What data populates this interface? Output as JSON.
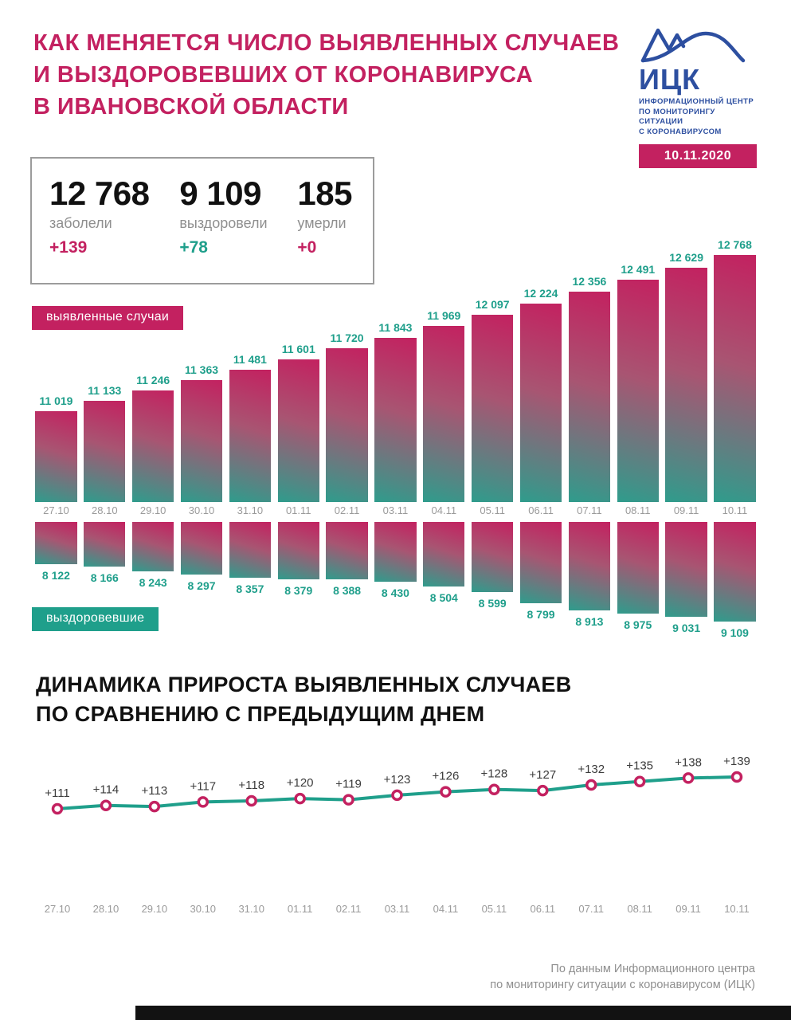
{
  "header": {
    "title_lines": [
      "КАК МЕНЯЕТСЯ ЧИСЛО ВЫЯВЛЕННЫХ СЛУЧАЕВ",
      "И ВЫЗДОРОВЕВШИХ ОТ КОРОНАВИРУСА",
      "В ИВАНОВСКОЙ ОБЛАСТИ"
    ],
    "logo": {
      "abbr": "ИЦК",
      "org_lines": [
        "ИНФОРМАЦИОННЫЙ ЦЕНТР",
        "ПО МОНИТОРИНГУ СИТУАЦИИ",
        "С КОРОНАВИРУСОМ"
      ],
      "icon": "wave-graph-icon"
    },
    "date_badge": "10.11.2020"
  },
  "summary": {
    "items": [
      {
        "value": "12 768",
        "label": "заболели",
        "delta": "+139",
        "accent": "#c32160"
      },
      {
        "value": "9 109",
        "label": "выздоровели",
        "delta": "+78",
        "accent": "#1f9f8b"
      },
      {
        "value": "185",
        "label": "умерли",
        "delta": "+0",
        "accent": "#c32160"
      }
    ]
  },
  "badges": {
    "cases": "выявленные случаи",
    "recovered": "выздоровевшие"
  },
  "section2_title_lines": [
    "ДИНАМИКА ПРИРОСТА ВЫЯВЛЕННЫХ СЛУЧАЕВ",
    "ПО СРАВНЕНИЮ С ПРЕДЫДУЩИМ ДНЕМ"
  ],
  "footer_lines": [
    "По данным Информационного центра",
    "по мониторингу ситуации с коронавирусом (ИЦК)"
  ],
  "colors": {
    "crimson": "#c32160",
    "teal": "#1f9f8b",
    "blue": "#2d4fa0"
  },
  "chart_data": [
    {
      "type": "bar",
      "name": "confirmed_cases",
      "title": "выявленные случаи",
      "categories": [
        "27.10",
        "28.10",
        "29.10",
        "30.10",
        "31.10",
        "01.11",
        "02.11",
        "03.11",
        "04.11",
        "05.11",
        "06.11",
        "07.11",
        "08.11",
        "09.11",
        "10.11"
      ],
      "values": [
        11019,
        11133,
        11246,
        11363,
        11481,
        11601,
        11720,
        11843,
        11969,
        12097,
        12224,
        12356,
        12491,
        12629,
        12768
      ],
      "labels": [
        "11 019",
        "11 133",
        "11 246",
        "11 363",
        "11 481",
        "11 601",
        "11 720",
        "11 843",
        "11 969",
        "12 097",
        "12 224",
        "12 356",
        "12 491",
        "12 629",
        "12 768"
      ],
      "ylim": [
        10000,
        12768
      ],
      "direction": "up",
      "grid": false,
      "legend": "none"
    },
    {
      "type": "bar",
      "name": "recovered",
      "title": "выздоровевшие",
      "categories": [
        "27.10",
        "28.10",
        "29.10",
        "30.10",
        "31.10",
        "01.11",
        "02.11",
        "03.11",
        "04.11",
        "05.11",
        "06.11",
        "07.11",
        "08.11",
        "09.11",
        "10.11"
      ],
      "values": [
        8122,
        8166,
        8243,
        8297,
        8357,
        8379,
        8388,
        8430,
        8504,
        8599,
        8799,
        8913,
        8975,
        9031,
        9109
      ],
      "labels": [
        "8 122",
        "8 166",
        "8 243",
        "8 297",
        "8 357",
        "8 379",
        "8 388",
        "8 430",
        "8 504",
        "8 599",
        "8 799",
        "8 913",
        "8 975",
        "9 031",
        "9 109"
      ],
      "ylim": [
        7400,
        9109
      ],
      "direction": "down",
      "grid": false,
      "legend": "none"
    },
    {
      "type": "line",
      "name": "daily_increase",
      "title": "ДИНАМИКА ПРИРОСТА ВЫЯВЛЕННЫХ СЛУЧАЕВ ПО СРАВНЕНИЮ С ПРЕДЫДУЩИМ ДНЕМ",
      "categories": [
        "27.10",
        "28.10",
        "29.10",
        "30.10",
        "31.10",
        "01.11",
        "02.11",
        "03.11",
        "04.11",
        "05.11",
        "06.11",
        "07.11",
        "08.11",
        "09.11",
        "10.11"
      ],
      "values": [
        111,
        114,
        113,
        117,
        118,
        120,
        119,
        123,
        126,
        128,
        127,
        132,
        135,
        138,
        139
      ],
      "labels": [
        "+111",
        "+114",
        "+113",
        "+117",
        "+118",
        "+120",
        "+119",
        "+123",
        "+126",
        "+128",
        "+127",
        "+132",
        "+135",
        "+138",
        "+139"
      ],
      "ylim": [
        100,
        150
      ],
      "grid": false,
      "legend": "none"
    }
  ]
}
